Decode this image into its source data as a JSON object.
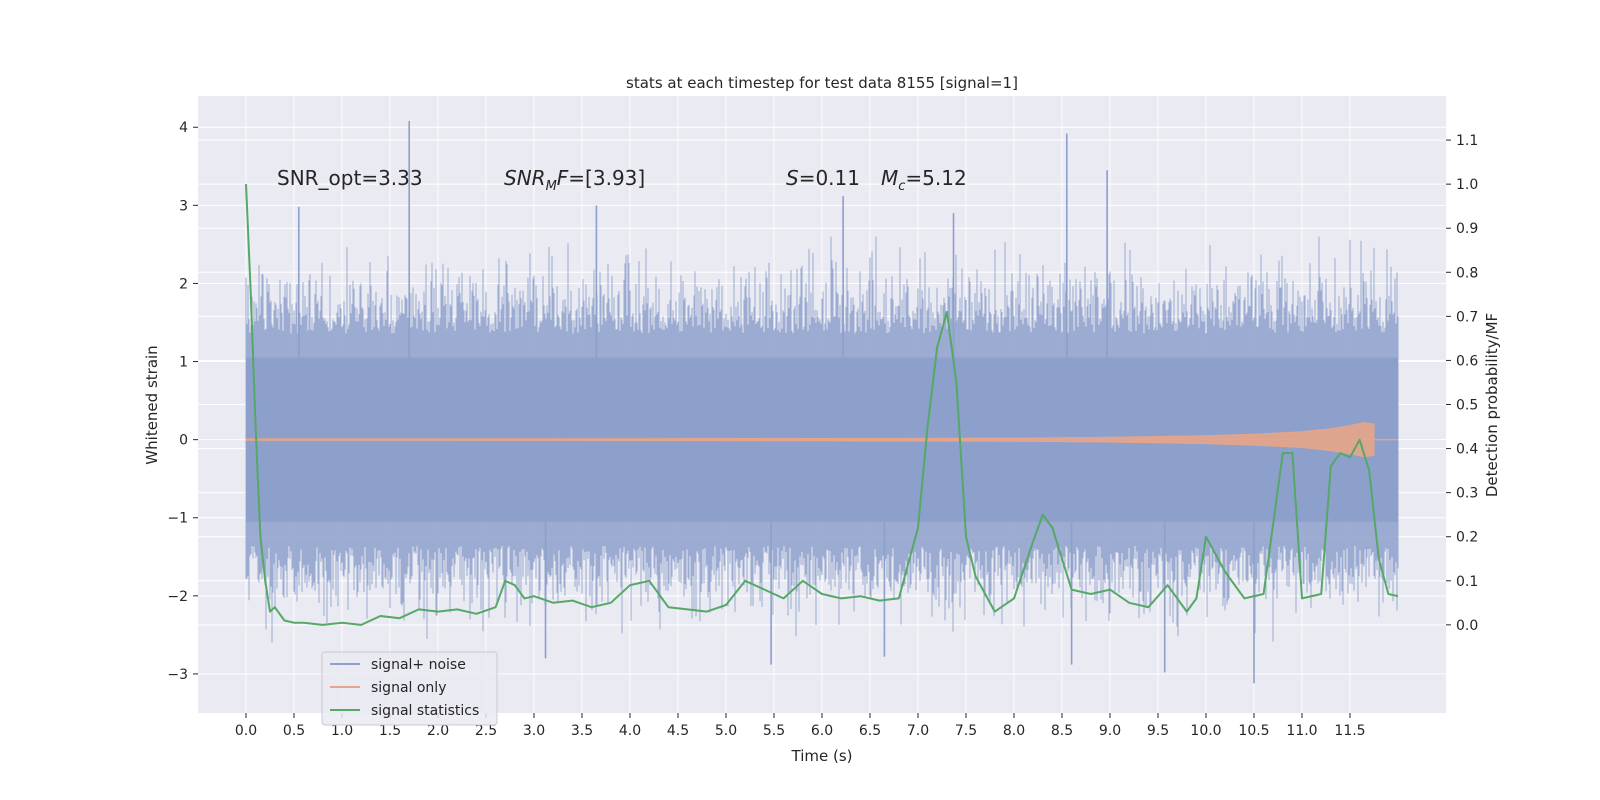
{
  "chart_data": {
    "type": "line",
    "title": "stats at each timestep for test data 8155 [signal=1]",
    "xlabel": "Time (s)",
    "ylabel": "Whitened strain",
    "ylabel_right": "Detection probability/MF",
    "xlim": [
      -0.5,
      12.5
    ],
    "ylim": [
      -3.5,
      4.4
    ],
    "ylim_right": [
      -0.2,
      1.2
    ],
    "x_ticks": [
      "0.0",
      "0.5",
      "1.0",
      "1.5",
      "2.0",
      "2.5",
      "3.0",
      "3.5",
      "4.0",
      "4.5",
      "5.0",
      "5.5",
      "6.0",
      "6.5",
      "7.0",
      "7.5",
      "8.0",
      "8.5",
      "9.0",
      "9.5",
      "10.0",
      "10.5",
      "11.0",
      "11.5"
    ],
    "y_ticks": [
      "4",
      "3",
      "2",
      "1",
      "0",
      "−1",
      "−2",
      "−3"
    ],
    "y_ticks_right": [
      "1.1",
      "1.0",
      "0.9",
      "0.8",
      "0.7",
      "0.6",
      "0.5",
      "0.4",
      "0.3",
      "0.2",
      "0.1",
      "0.0"
    ],
    "grid": true,
    "legend_position": "lower-left",
    "annotations": {
      "snr_opt": "SNR_opt=3.33",
      "snr_mf": "SNR_MF=[3.93]",
      "s_value": "S=0.11",
      "mc_value": "M_c=5.12"
    },
    "series": [
      {
        "name": "signal+ noise",
        "color": "#8da0cb",
        "x_range": [
          0.0,
          12.0
        ],
        "envelope_typical": [
          -1.6,
          1.6
        ],
        "peaks": [
          {
            "x": 1.7,
            "y": 4.08
          },
          {
            "x": 8.55,
            "y": 3.92
          },
          {
            "x": 8.97,
            "y": 3.45
          },
          {
            "x": 0.55,
            "y": 2.98
          },
          {
            "x": 6.22,
            "y": 3.12
          },
          {
            "x": 3.65,
            "y": 3.0
          },
          {
            "x": 7.37,
            "y": 2.9
          },
          {
            "x": 10.5,
            "y": -3.12
          },
          {
            "x": 9.57,
            "y": -2.98
          },
          {
            "x": 5.47,
            "y": -2.88
          },
          {
            "x": 8.6,
            "y": -2.88
          },
          {
            "x": 6.65,
            "y": -2.78
          },
          {
            "x": 3.12,
            "y": -2.8
          }
        ]
      },
      {
        "name": "signal only",
        "color": "#e5a58a",
        "x": [
          0.0,
          2.0,
          4.0,
          6.0,
          8.0,
          9.0,
          10.0,
          10.5,
          11.0,
          11.3,
          11.5,
          11.65,
          11.75
        ],
        "amplitude": [
          0.01,
          0.01,
          0.012,
          0.015,
          0.02,
          0.03,
          0.05,
          0.07,
          0.1,
          0.14,
          0.18,
          0.22,
          0.2
        ]
      },
      {
        "name": "signal statistics",
        "color": "#55a868",
        "axis": "right",
        "x": [
          0.0,
          0.05,
          0.1,
          0.15,
          0.2,
          0.25,
          0.3,
          0.4,
          0.5,
          0.6,
          0.8,
          1.0,
          1.2,
          1.4,
          1.6,
          1.8,
          2.0,
          2.2,
          2.4,
          2.6,
          2.7,
          2.8,
          2.9,
          3.0,
          3.2,
          3.4,
          3.6,
          3.8,
          4.0,
          4.2,
          4.4,
          4.6,
          4.8,
          5.0,
          5.2,
          5.4,
          5.6,
          5.8,
          6.0,
          6.2,
          6.4,
          6.6,
          6.8,
          7.0,
          7.1,
          7.2,
          7.3,
          7.4,
          7.5,
          7.6,
          7.8,
          8.0,
          8.2,
          8.3,
          8.4,
          8.6,
          8.8,
          9.0,
          9.2,
          9.4,
          9.6,
          9.8,
          9.9,
          10.0,
          10.2,
          10.4,
          10.6,
          10.8,
          10.9,
          11.0,
          11.2,
          11.3,
          11.4,
          11.5,
          11.6,
          11.7,
          11.8,
          11.9,
          12.0
        ],
        "y": [
          1.0,
          0.75,
          0.45,
          0.2,
          0.1,
          0.03,
          0.04,
          0.01,
          0.005,
          0.005,
          0.0,
          0.005,
          0.0,
          0.02,
          0.015,
          0.035,
          0.03,
          0.035,
          0.025,
          0.04,
          0.1,
          0.09,
          0.06,
          0.065,
          0.05,
          0.055,
          0.04,
          0.05,
          0.09,
          0.1,
          0.04,
          0.035,
          0.03,
          0.045,
          0.1,
          0.08,
          0.06,
          0.1,
          0.07,
          0.06,
          0.065,
          0.055,
          0.06,
          0.22,
          0.45,
          0.63,
          0.71,
          0.55,
          0.2,
          0.11,
          0.03,
          0.06,
          0.19,
          0.25,
          0.22,
          0.08,
          0.07,
          0.08,
          0.05,
          0.04,
          0.09,
          0.03,
          0.06,
          0.2,
          0.12,
          0.06,
          0.07,
          0.39,
          0.39,
          0.06,
          0.07,
          0.36,
          0.39,
          0.38,
          0.42,
          0.35,
          0.15,
          0.07,
          0.065
        ]
      }
    ]
  }
}
